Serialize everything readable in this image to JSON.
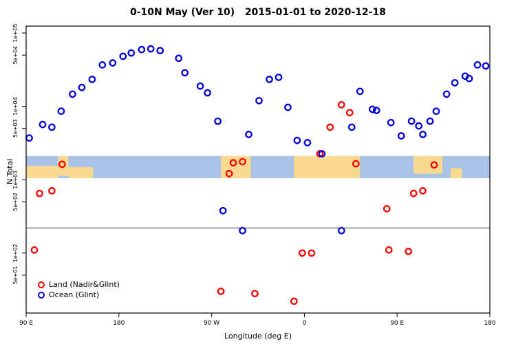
{
  "chart_data": {
    "type": "scatter",
    "title": "0-10N May (Ver 10)   2015-01-01 to 2020-12-18",
    "xlabel": "Longitude (deg E)",
    "ylabel": "N Total",
    "x_axis": {
      "ticks": [
        0,
        90,
        180,
        270,
        360,
        450
      ],
      "tick_labels": [
        "90 E",
        "180",
        "90 W",
        "0",
        "90 E",
        "180"
      ],
      "note": "wrapped longitude axis: 90E to 180 to 90W to 0 to 90E to 180",
      "range_deg_along_axis": [
        0,
        450
      ]
    },
    "y_axis": {
      "scale": "log",
      "ticks": [
        100000,
        50000,
        10000,
        5000,
        1000,
        500,
        100,
        50
      ],
      "tick_labels": [
        "1e+05",
        "5e+04",
        "1e+04",
        "5e+03",
        "1e+03",
        "5e+02",
        "1e+02",
        "5e+01"
      ]
    },
    "map_band": {
      "value_range": [
        1050,
        2100
      ],
      "ocean_color": "#a9c3e6",
      "land_color": "#fbd98e",
      "land_spans": [
        {
          "from": 0,
          "to": 31,
          "coverage": 0.55,
          "align": "bottom"
        },
        {
          "from": 31,
          "to": 41,
          "coverage": 0.9,
          "align": "top"
        },
        {
          "from": 41,
          "to": 65,
          "coverage": 0.5,
          "align": "bottom"
        },
        {
          "from": 189,
          "to": 218,
          "coverage": 1.0,
          "align": "top"
        },
        {
          "from": 260,
          "to": 324,
          "coverage": 1.0,
          "align": "top"
        },
        {
          "from": 376,
          "to": 404,
          "coverage": 0.8,
          "align": "top"
        },
        {
          "from": 412,
          "to": 423,
          "coverage": 0.45,
          "align": "bottom"
        }
      ]
    },
    "reference_line_value": 220,
    "series": [
      {
        "name": "Land (Nadir&Glint)",
        "color": "#ff0000",
        "points": [
          [
            8,
            110
          ],
          [
            13,
            649
          ],
          [
            25,
            705
          ],
          [
            35,
            1620
          ],
          [
            189,
            30
          ],
          [
            197,
            1210
          ],
          [
            201,
            1700
          ],
          [
            210,
            1760
          ],
          [
            222,
            28
          ],
          [
            260,
            22
          ],
          [
            268,
            100
          ],
          [
            277,
            100
          ],
          [
            285,
            2260
          ],
          [
            295,
            5200
          ],
          [
            306,
            10500
          ],
          [
            314,
            8220
          ],
          [
            320,
            1650
          ],
          [
            350,
            402
          ],
          [
            352,
            110
          ],
          [
            371,
            105
          ],
          [
            376,
            650
          ],
          [
            385,
            705
          ],
          [
            396,
            1590
          ]
        ]
      },
      {
        "name": "Ocean (Glint)",
        "color": "#0000dd",
        "points": [
          [
            3,
            3700
          ],
          [
            16,
            5650
          ],
          [
            25,
            5200
          ],
          [
            34,
            8600
          ],
          [
            45,
            14700
          ],
          [
            54,
            18100
          ],
          [
            64,
            23300
          ],
          [
            74,
            36800
          ],
          [
            84,
            39100
          ],
          [
            94,
            48200
          ],
          [
            102,
            53500
          ],
          [
            112,
            59400
          ],
          [
            121,
            60800
          ],
          [
            130,
            57700
          ],
          [
            148,
            45300
          ],
          [
            154,
            28700
          ],
          [
            169,
            18900
          ],
          [
            176,
            15300
          ],
          [
            186,
            6270
          ],
          [
            191,
            378
          ],
          [
            210,
            202
          ],
          [
            216,
            4140
          ],
          [
            226,
            11970
          ],
          [
            236,
            23300
          ],
          [
            245,
            24900
          ],
          [
            254,
            9710
          ],
          [
            263,
            3430
          ],
          [
            273,
            3200
          ],
          [
            287,
            2260
          ],
          [
            306,
            202
          ],
          [
            316,
            5200
          ],
          [
            324,
            16000
          ],
          [
            336,
            9120
          ],
          [
            340,
            8800
          ],
          [
            354,
            6010
          ],
          [
            364,
            3960
          ],
          [
            374,
            6280
          ],
          [
            381,
            5420
          ],
          [
            385,
            4140
          ],
          [
            392,
            6280
          ],
          [
            398,
            8570
          ],
          [
            408,
            14700
          ],
          [
            416,
            21000
          ],
          [
            426,
            25800
          ],
          [
            430,
            24000
          ],
          [
            438,
            36800
          ],
          [
            446,
            35500
          ]
        ]
      }
    ],
    "legend": {
      "position": "bottom-left",
      "entries": [
        "Land (Nadir&Glint)",
        "Ocean (Glint)"
      ]
    }
  }
}
